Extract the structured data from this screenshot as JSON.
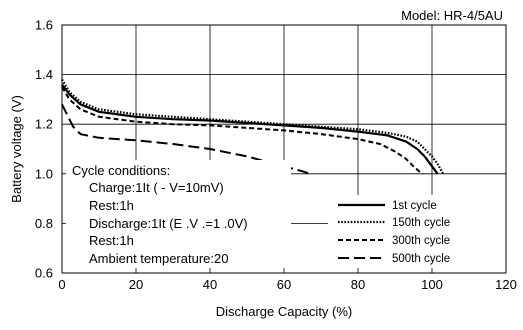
{
  "chart_data": {
    "type": "line",
    "title": "Model: HR-4/5AU",
    "xlabel": "Discharge  Capacity (%)",
    "ylabel": "Battery voltage (V)",
    "xlim": [
      0,
      120
    ],
    "ylim": [
      0.6,
      1.6
    ],
    "x_ticks": [
      "0",
      "20",
      "40",
      "60",
      "80",
      "100",
      "120"
    ],
    "y_ticks": [
      "0.6",
      "0.8",
      "1.0",
      "1.2",
      "1.4",
      "1.6"
    ],
    "grid": true,
    "legend_position": "bottom-right",
    "conditions": [
      "Cycle conditions:",
      "Charge:1It ( -     V=10mV)",
      "Rest:1h",
      "Discharge:1It (E .V  .=1 .0V)",
      "Rest:1h",
      "Ambient temperature:20"
    ],
    "series": [
      {
        "name": "1st cycle",
        "style": "solid",
        "x": [
          0,
          2,
          5,
          10,
          20,
          30,
          40,
          50,
          60,
          70,
          80,
          88,
          93,
          96,
          98,
          99.5,
          100.5,
          101.5
        ],
        "y": [
          1.36,
          1.32,
          1.28,
          1.25,
          1.23,
          1.22,
          1.215,
          1.205,
          1.195,
          1.185,
          1.17,
          1.155,
          1.13,
          1.1,
          1.07,
          1.04,
          1.02,
          1.0
        ]
      },
      {
        "name": "150th cycle",
        "style": "dotted",
        "x": [
          0,
          2,
          5,
          10,
          20,
          30,
          40,
          50,
          60,
          70,
          80,
          88,
          93,
          96,
          98,
          100,
          101.5,
          103
        ],
        "y": [
          1.38,
          1.33,
          1.29,
          1.26,
          1.24,
          1.23,
          1.22,
          1.21,
          1.2,
          1.19,
          1.18,
          1.165,
          1.15,
          1.13,
          1.1,
          1.07,
          1.04,
          1.0
        ]
      },
      {
        "name": "300th cycle",
        "style": "dashed",
        "x": [
          0,
          2,
          5,
          10,
          20,
          30,
          40,
          50,
          60,
          70,
          80,
          86,
          90,
          93,
          95,
          96.5,
          97.5
        ],
        "y": [
          1.35,
          1.3,
          1.26,
          1.23,
          1.21,
          1.2,
          1.195,
          1.185,
          1.175,
          1.16,
          1.14,
          1.12,
          1.09,
          1.06,
          1.03,
          1.01,
          1.0
        ]
      },
      {
        "name": "500th cycle",
        "style": "longdash",
        "x": [
          0,
          1,
          3,
          5,
          10,
          20,
          30,
          40,
          45,
          50,
          55,
          60,
          65,
          67
        ],
        "y": [
          1.28,
          1.25,
          1.19,
          1.16,
          1.145,
          1.135,
          1.12,
          1.1,
          1.085,
          1.07,
          1.05,
          1.03,
          1.01,
          1.0
        ]
      }
    ]
  }
}
